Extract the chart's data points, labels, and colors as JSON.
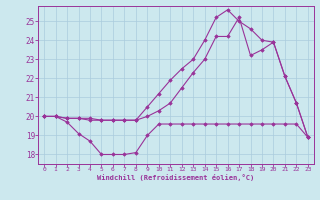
{
  "xlabel": "Windchill (Refroidissement éolien,°C)",
  "bg_color": "#cce8ee",
  "grid_color": "#aaccdd",
  "line_color": "#993399",
  "xlim": [
    -0.5,
    23.5
  ],
  "ylim": [
    17.5,
    25.8
  ],
  "yticks": [
    18,
    19,
    20,
    21,
    22,
    23,
    24,
    25
  ],
  "xticks": [
    0,
    1,
    2,
    3,
    4,
    5,
    6,
    7,
    8,
    9,
    10,
    11,
    12,
    13,
    14,
    15,
    16,
    17,
    18,
    19,
    20,
    21,
    22,
    23
  ],
  "line1_x": [
    0,
    1,
    2,
    3,
    4,
    5,
    6,
    7,
    8,
    9,
    10,
    11,
    12,
    13,
    14,
    15,
    16,
    17,
    18,
    19,
    20,
    21,
    22,
    23
  ],
  "line1_y": [
    20.0,
    20.0,
    19.7,
    19.1,
    18.7,
    18.0,
    18.0,
    18.0,
    18.1,
    19.0,
    19.6,
    19.6,
    19.6,
    19.6,
    19.6,
    19.6,
    19.6,
    19.6,
    19.6,
    19.6,
    19.6,
    19.6,
    19.6,
    18.9
  ],
  "line2_x": [
    0,
    1,
    2,
    3,
    4,
    5,
    6,
    7,
    8,
    9,
    10,
    11,
    12,
    13,
    14,
    15,
    16,
    17,
    18,
    19,
    20,
    21,
    22,
    23
  ],
  "line2_y": [
    20.0,
    20.0,
    19.9,
    19.9,
    19.9,
    19.8,
    19.8,
    19.8,
    19.8,
    20.0,
    20.3,
    20.7,
    21.5,
    22.3,
    23.0,
    24.2,
    24.2,
    25.2,
    23.2,
    23.5,
    23.9,
    22.1,
    20.7,
    18.9
  ],
  "line3_x": [
    0,
    1,
    2,
    3,
    4,
    5,
    6,
    7,
    8,
    9,
    10,
    11,
    12,
    13,
    14,
    15,
    16,
    17,
    18,
    19,
    20,
    21,
    22,
    23
  ],
  "line3_y": [
    20.0,
    20.0,
    19.9,
    19.9,
    19.8,
    19.8,
    19.8,
    19.8,
    19.8,
    20.5,
    21.2,
    21.9,
    22.5,
    23.0,
    24.0,
    25.2,
    25.6,
    25.0,
    24.6,
    24.0,
    23.9,
    22.1,
    20.7,
    18.9
  ]
}
